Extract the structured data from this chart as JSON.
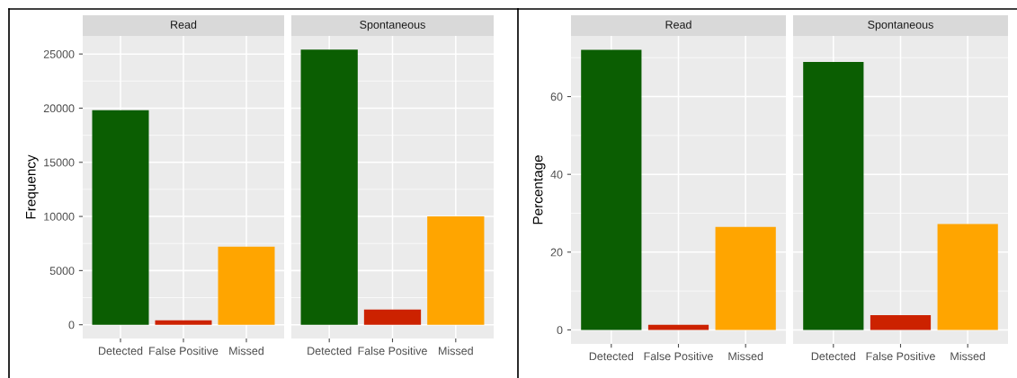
{
  "chart_data": [
    {
      "type": "bar",
      "title": "Read",
      "ylabel": "Frequency",
      "categories": [
        "Detected",
        "False Positive",
        "Missed"
      ],
      "values": [
        19800,
        400,
        7200
      ],
      "colors": [
        "#0b5e02",
        "#cc2200",
        "#ffa500"
      ],
      "ylim": [
        -1270,
        26670
      ],
      "yticks": [
        0,
        5000,
        10000,
        15000,
        20000,
        25000
      ],
      "grid": true
    },
    {
      "type": "bar",
      "title": "Spontaneous",
      "categories": [
        "Detected",
        "False Positive",
        "Missed"
      ],
      "values": [
        25400,
        1400,
        10000
      ],
      "colors": [
        "#0b5e02",
        "#cc2200",
        "#ffa500"
      ],
      "ylim": [
        -1270,
        26670
      ],
      "yticks": [
        0,
        5000,
        10000,
        15000,
        20000,
        25000
      ],
      "grid": true,
      "tick_labels": "x"
    },
    {
      "type": "bar",
      "title": "Read",
      "ylabel": "Percentage",
      "categories": [
        "Detected",
        "False Positive",
        "Missed"
      ],
      "values": [
        72.0,
        1.3,
        26.5
      ],
      "colors": [
        "#0b5e02",
        "#cc2200",
        "#ffa500"
      ],
      "ylim": [
        -3.6,
        75.6
      ],
      "yticks": [
        0,
        20,
        40,
        60
      ],
      "grid": true
    },
    {
      "type": "bar",
      "title": "Spontaneous",
      "categories": [
        "Detected",
        "False Positive",
        "Missed"
      ],
      "values": [
        68.9,
        3.8,
        27.2
      ],
      "colors": [
        "#0b5e02",
        "#cc2200",
        "#ffa500"
      ],
      "ylim": [
        -3.6,
        75.6
      ],
      "yticks": [
        0,
        20,
        40,
        60
      ],
      "grid": true,
      "tick_labels": "x"
    }
  ]
}
